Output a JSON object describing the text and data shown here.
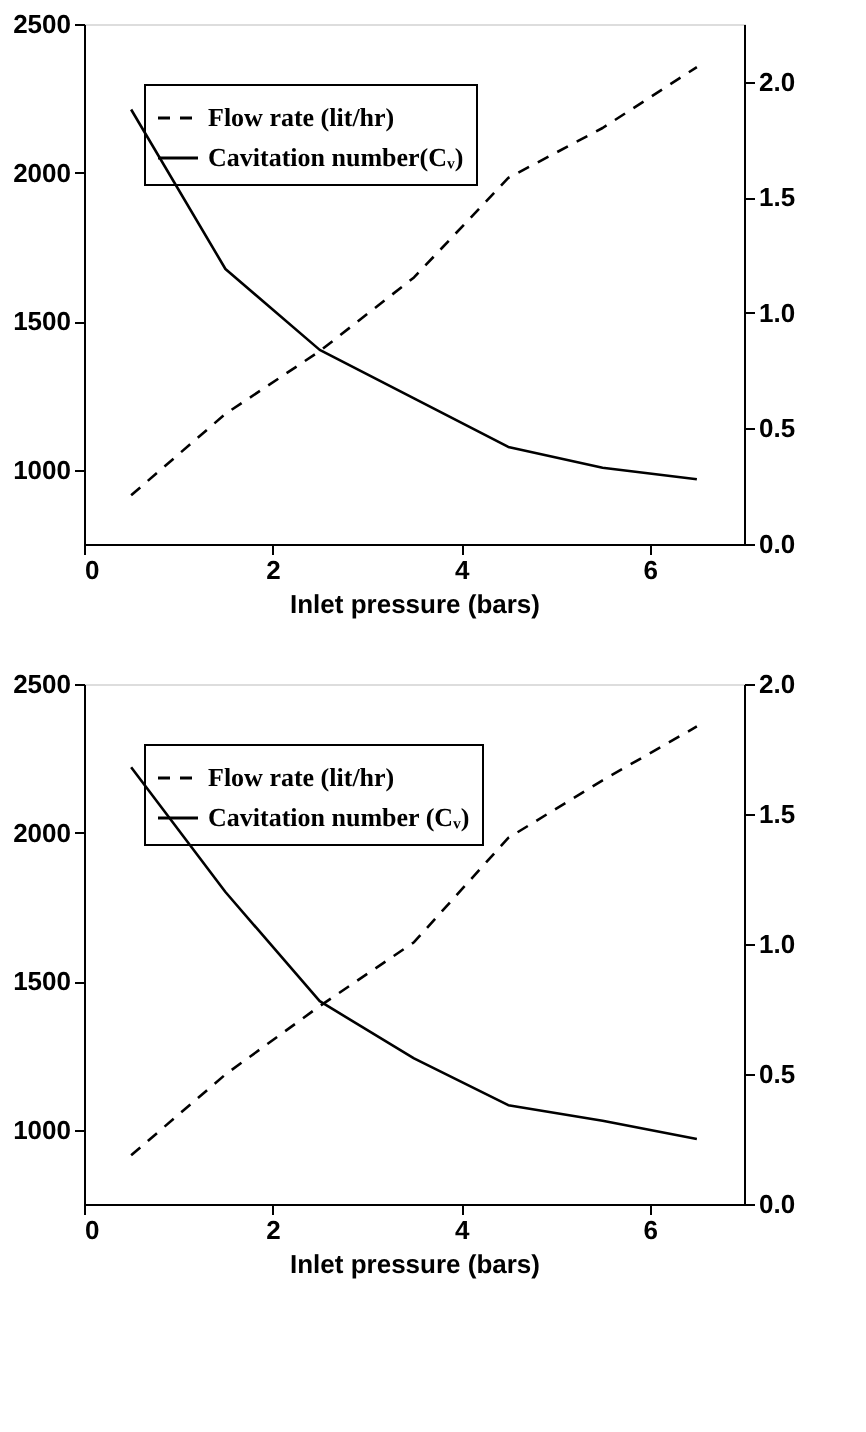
{
  "chart_data": [
    {
      "type": "line",
      "xlabel": "Inlet pressure (bars)",
      "x": [
        0.5,
        1.5,
        2.5,
        3.5,
        4.5,
        5.5,
        6.5
      ],
      "xlim": [
        0,
        7
      ],
      "xticks": [
        0,
        2,
        4,
        6
      ],
      "ylim": [
        750,
        2500
      ],
      "yticks": [
        1000,
        1500,
        2000,
        2500
      ],
      "y2lim": [
        0,
        2.25
      ],
      "y2ticks": [
        {
          "value": 0,
          "label": "0.0"
        },
        {
          "value": 0.5,
          "label": "0.5"
        },
        {
          "value": 1,
          "label": "1.0"
        },
        {
          "value": 1.5,
          "label": "1.5"
        },
        {
          "value": 2,
          "label": "2.0"
        }
      ],
      "legend": "top left",
      "grid": false,
      "marker": "none",
      "series": [
        {
          "name": "Flow rate (lit/hr)",
          "color": "#000000",
          "line_style": "dashed",
          "values": [
            914,
            1188,
            1399,
            1647,
            1982,
            2150,
            2355
          ]
        },
        {
          "name": "Cavitation number(Cᵥ)",
          "color": "#000000",
          "line_style": "solid",
          "axis": "y2",
          "values": [
            1.88,
            1.19,
            0.84,
            0.63,
            0.42,
            0.33,
            0.28
          ]
        }
      ]
    },
    {
      "type": "line",
      "xlabel": "Inlet pressure (bars)",
      "x": [
        0.5,
        1.5,
        2.5,
        3.5,
        4.5,
        5.5,
        6.5
      ],
      "xlim": [
        0,
        7
      ],
      "xticks": [
        0,
        2,
        4,
        6
      ],
      "ylim": [
        750,
        2500
      ],
      "yticks": [
        1000,
        1500,
        2000,
        2500
      ],
      "y2lim": [
        0,
        2
      ],
      "y2ticks": [
        {
          "value": 0,
          "label": "0.0"
        },
        {
          "value": 0.5,
          "label": "0.5"
        },
        {
          "value": 1,
          "label": "1.0"
        },
        {
          "value": 1.5,
          "label": "1.5"
        },
        {
          "value": 2,
          "label": "2.0"
        }
      ],
      "legend": "top left",
      "grid": false,
      "marker": "none",
      "series": [
        {
          "name": "Flow rate (lit/hr)",
          "color": "#000000",
          "line_style": "dashed",
          "values": [
            914,
            1186,
            1416,
            1631,
            1982,
            2176,
            2357
          ]
        },
        {
          "name": "Cavitation number (Cᵥ)",
          "color": "#000000",
          "line_style": "solid",
          "axis": "y2",
          "values": [
            1.68,
            1.2,
            0.78,
            0.56,
            0.38,
            0.32,
            0.25
          ]
        }
      ]
    }
  ]
}
